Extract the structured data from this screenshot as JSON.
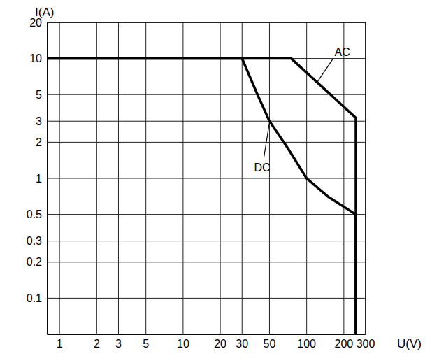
{
  "chart_data": {
    "type": "line",
    "x_label": "U(V)",
    "y_label": "I(A)",
    "log": true,
    "grid": true,
    "xlim": [
      0.8,
      300
    ],
    "ylim": [
      0.05,
      20
    ],
    "xticks": [
      1,
      2,
      3,
      5,
      10,
      20,
      30,
      50,
      100,
      200,
      300
    ],
    "yticks": [
      0.1,
      0.2,
      0.3,
      0.5,
      1,
      2,
      3,
      5,
      10,
      20
    ],
    "series": [
      {
        "name": "AC",
        "color": "#000000",
        "x": [
          0.8,
          75,
          250,
          250
        ],
        "values": [
          10,
          10,
          3.2,
          0.05
        ]
      },
      {
        "name": "DC",
        "color": "#000000",
        "x": [
          0.8,
          30,
          40,
          50,
          70,
          100,
          150,
          250,
          250
        ],
        "values": [
          10,
          10,
          5,
          3,
          1.8,
          1,
          0.7,
          0.5,
          0.05
        ]
      }
    ]
  }
}
